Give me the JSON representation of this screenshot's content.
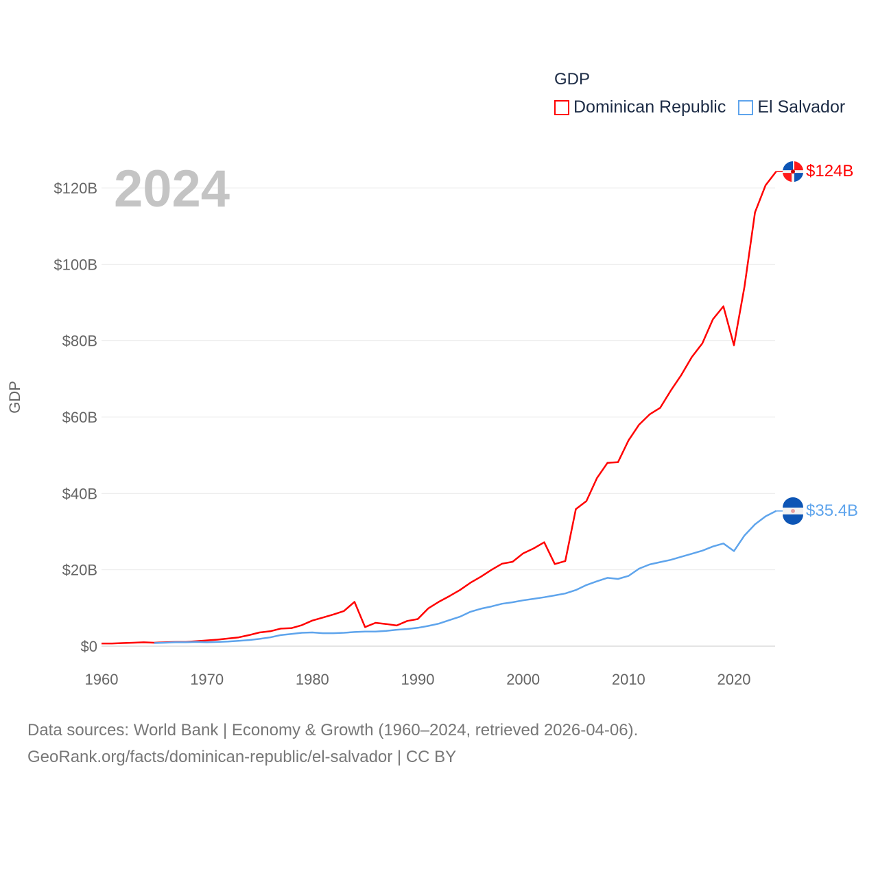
{
  "chart_data": {
    "type": "line",
    "title": "GDP",
    "year_label": "2024",
    "ylabel": "GDP",
    "xlabel": "",
    "xlim": [
      1960,
      2024
    ],
    "ylim": [
      0,
      130
    ],
    "x_ticks": [
      "1960",
      "1970",
      "1980",
      "1990",
      "2000",
      "2010",
      "2020"
    ],
    "y_ticks": [
      "$0",
      "$20B",
      "$40B",
      "$60B",
      "$80B",
      "$100B",
      "$120B"
    ],
    "y_tick_values": [
      0,
      20,
      40,
      60,
      80,
      100,
      120
    ],
    "grid": true,
    "legend_placement": "top-right",
    "series": [
      {
        "name": "Dominican Republic",
        "color": "#ff0000",
        "end_label": "$124B",
        "start_year": 1960,
        "values": [
          0.7,
          0.7,
          0.8,
          0.9,
          1.0,
          0.9,
          1.0,
          1.1,
          1.1,
          1.3,
          1.5,
          1.7,
          2.0,
          2.3,
          2.9,
          3.6,
          3.9,
          4.6,
          4.7,
          5.5,
          6.7,
          7.5,
          8.3,
          9.2,
          11.6,
          5.0,
          6.1,
          5.8,
          5.4,
          6.6,
          7.1,
          9.9,
          11.6,
          13.1,
          14.7,
          16.6,
          18.2,
          20.0,
          21.6,
          22.1,
          24.3,
          25.6,
          27.2,
          21.5,
          22.3,
          35.9,
          38.0,
          44.0,
          48.0,
          48.2,
          53.9,
          58.0,
          60.7,
          62.4,
          66.9,
          71.0,
          75.7,
          79.3,
          85.6,
          89.0,
          78.8,
          94.2,
          113.6,
          120.7,
          124.3
        ]
      },
      {
        "name": "El Salvador",
        "color": "#5ea4ec",
        "end_label": "$35.4B",
        "start_year": 1965,
        "values": [
          0.8,
          0.9,
          1.0,
          1.0,
          1.1,
          1.0,
          1.1,
          1.2,
          1.4,
          1.6,
          1.9,
          2.3,
          2.9,
          3.2,
          3.5,
          3.6,
          3.4,
          3.4,
          3.5,
          3.7,
          3.8,
          3.8,
          4.0,
          4.3,
          4.5,
          4.8,
          5.3,
          5.9,
          6.8,
          7.7,
          9.0,
          9.8,
          10.4,
          11.1,
          11.5,
          12.0,
          12.4,
          12.8,
          13.3,
          13.8,
          14.7,
          16.0,
          17.0,
          17.9,
          17.6,
          18.4,
          20.3,
          21.4,
          22.0,
          22.6,
          23.4,
          24.2,
          25.0,
          26.1,
          26.9,
          24.9,
          29.0,
          31.9,
          34.0,
          35.4
        ]
      }
    ]
  },
  "footer": {
    "line1": "Data sources: World Bank | Economy & Growth (1960–2024, retrieved 2026-04-06).",
    "line2": "GeoRank.org/facts/dominican-republic/el-salvador | CC BY"
  }
}
